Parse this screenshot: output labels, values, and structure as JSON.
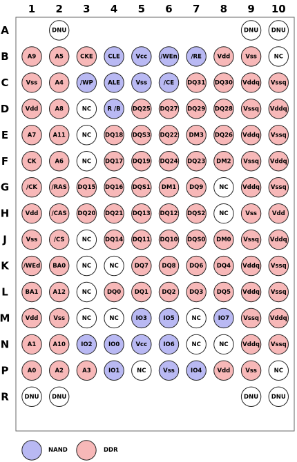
{
  "columns": [
    "1",
    "2",
    "3",
    "4",
    "5",
    "6",
    "7",
    "8",
    "9",
    "10"
  ],
  "rows": [
    "A",
    "B",
    "C",
    "D",
    "E",
    "F",
    "G",
    "H",
    "J",
    "K",
    "L",
    "M",
    "N",
    "P",
    "R"
  ],
  "colors": {
    "nand": "#b9b9f3",
    "ddr": "#f7b8b8",
    "none": "#ffffff"
  },
  "legend": [
    {
      "label": "NAND",
      "type": "nand"
    },
    {
      "label": "DDR",
      "type": "ddr"
    }
  ],
  "grid": [
    [
      null,
      {
        "label": "DNU",
        "type": "none"
      },
      null,
      null,
      null,
      null,
      null,
      null,
      {
        "label": "DNU",
        "type": "none"
      },
      {
        "label": "DNU",
        "type": "none"
      }
    ],
    [
      {
        "label": "A9",
        "type": "ddr"
      },
      {
        "label": "A5",
        "type": "ddr"
      },
      {
        "label": "CKE",
        "type": "ddr"
      },
      {
        "label": "CLE",
        "type": "nand"
      },
      {
        "label": "Vcc",
        "type": "nand"
      },
      {
        "label": "/WEn",
        "type": "nand"
      },
      {
        "label": "/RE",
        "type": "nand"
      },
      {
        "label": "Vdd",
        "type": "ddr"
      },
      {
        "label": "Vss",
        "type": "ddr"
      },
      {
        "label": "NC",
        "type": "none"
      }
    ],
    [
      {
        "label": "Vss",
        "type": "ddr"
      },
      {
        "label": "A4",
        "type": "ddr"
      },
      {
        "label": "/WP",
        "type": "nand"
      },
      {
        "label": "ALE",
        "type": "nand"
      },
      {
        "label": "Vss",
        "type": "nand"
      },
      {
        "label": "/CE",
        "type": "nand"
      },
      {
        "label": "DQ31",
        "type": "ddr"
      },
      {
        "label": "DQ30",
        "type": "ddr"
      },
      {
        "label": "Vddq",
        "type": "ddr"
      },
      {
        "label": "Vssq",
        "type": "ddr"
      }
    ],
    [
      {
        "label": "Vdd",
        "type": "ddr"
      },
      {
        "label": "A8",
        "type": "ddr"
      },
      {
        "label": "NC",
        "type": "none"
      },
      {
        "label": "R /B",
        "type": "nand"
      },
      {
        "label": "DQ25",
        "type": "ddr"
      },
      {
        "label": "DQ27",
        "type": "ddr"
      },
      {
        "label": "DQ29",
        "type": "ddr"
      },
      {
        "label": "DQ28",
        "type": "ddr"
      },
      {
        "label": "Vssq",
        "type": "ddr"
      },
      {
        "label": "Vddq",
        "type": "ddr"
      }
    ],
    [
      {
        "label": "A7",
        "type": "ddr"
      },
      {
        "label": "A11",
        "type": "ddr"
      },
      {
        "label": "NC",
        "type": "none"
      },
      {
        "label": "DQ18",
        "type": "ddr"
      },
      {
        "label": "DQS3",
        "type": "ddr"
      },
      {
        "label": "DQ22",
        "type": "ddr"
      },
      {
        "label": "DM3",
        "type": "ddr"
      },
      {
        "label": "DQ26",
        "type": "ddr"
      },
      {
        "label": "Vddq",
        "type": "ddr"
      },
      {
        "label": "Vssq",
        "type": "ddr"
      }
    ],
    [
      {
        "label": "CK",
        "type": "ddr"
      },
      {
        "label": "A6",
        "type": "ddr"
      },
      {
        "label": "NC",
        "type": "none"
      },
      {
        "label": "DQ17",
        "type": "ddr"
      },
      {
        "label": "DQ19",
        "type": "ddr"
      },
      {
        "label": "DQ24",
        "type": "ddr"
      },
      {
        "label": "DQ23",
        "type": "ddr"
      },
      {
        "label": "DM2",
        "type": "ddr"
      },
      {
        "label": "Vssq",
        "type": "ddr"
      },
      {
        "label": "Vddq",
        "type": "ddr"
      }
    ],
    [
      {
        "label": "/CK",
        "type": "ddr"
      },
      {
        "label": "/RAS",
        "type": "ddr"
      },
      {
        "label": "DQ15",
        "type": "ddr"
      },
      {
        "label": "DQ16",
        "type": "ddr"
      },
      {
        "label": "DQS1",
        "type": "ddr"
      },
      {
        "label": "DM1",
        "type": "ddr"
      },
      {
        "label": "DQ9",
        "type": "ddr"
      },
      {
        "label": "NC",
        "type": "none"
      },
      {
        "label": "Vddq",
        "type": "ddr"
      },
      {
        "label": "Vssq",
        "type": "ddr"
      }
    ],
    [
      {
        "label": "Vdd",
        "type": "ddr"
      },
      {
        "label": "/CAS",
        "type": "ddr"
      },
      {
        "label": "DQ20",
        "type": "ddr"
      },
      {
        "label": "DQ21",
        "type": "ddr"
      },
      {
        "label": "DQ13",
        "type": "ddr"
      },
      {
        "label": "DQ12",
        "type": "ddr"
      },
      {
        "label": "DQS2",
        "type": "ddr"
      },
      {
        "label": "NC",
        "type": "none"
      },
      {
        "label": "Vss",
        "type": "ddr"
      },
      {
        "label": "Vdd",
        "type": "ddr"
      }
    ],
    [
      {
        "label": "Vss",
        "type": "ddr"
      },
      {
        "label": "/CS",
        "type": "ddr"
      },
      {
        "label": "NC",
        "type": "none"
      },
      {
        "label": "DQ14",
        "type": "ddr"
      },
      {
        "label": "DQ11",
        "type": "ddr"
      },
      {
        "label": "DQ10",
        "type": "ddr"
      },
      {
        "label": "DQS0",
        "type": "ddr"
      },
      {
        "label": "DM0",
        "type": "ddr"
      },
      {
        "label": "Vssq",
        "type": "ddr"
      },
      {
        "label": "Vddq",
        "type": "ddr"
      }
    ],
    [
      {
        "label": "/WEd",
        "type": "ddr"
      },
      {
        "label": "BA0",
        "type": "ddr"
      },
      {
        "label": "NC",
        "type": "none"
      },
      {
        "label": "NC",
        "type": "none"
      },
      {
        "label": "DQ7",
        "type": "ddr"
      },
      {
        "label": "DQ8",
        "type": "ddr"
      },
      {
        "label": "DQ6",
        "type": "ddr"
      },
      {
        "label": "DQ4",
        "type": "ddr"
      },
      {
        "label": "Vddq",
        "type": "ddr"
      },
      {
        "label": "Vssq",
        "type": "ddr"
      }
    ],
    [
      {
        "label": "BA1",
        "type": "ddr"
      },
      {
        "label": "A12",
        "type": "ddr"
      },
      {
        "label": "NC",
        "type": "none"
      },
      {
        "label": "DQ0",
        "type": "ddr"
      },
      {
        "label": "DQ1",
        "type": "ddr"
      },
      {
        "label": "DQ2",
        "type": "ddr"
      },
      {
        "label": "DQ3",
        "type": "ddr"
      },
      {
        "label": "DQ5",
        "type": "ddr"
      },
      {
        "label": "Vddq",
        "type": "ddr"
      },
      {
        "label": "Vssq",
        "type": "ddr"
      }
    ],
    [
      {
        "label": "Vdd",
        "type": "ddr"
      },
      {
        "label": "Vss",
        "type": "ddr"
      },
      {
        "label": "NC",
        "type": "none"
      },
      {
        "label": "NC",
        "type": "none"
      },
      {
        "label": "IO3",
        "type": "nand"
      },
      {
        "label": "IO5",
        "type": "nand"
      },
      {
        "label": "NC",
        "type": "none"
      },
      {
        "label": "IO7",
        "type": "nand"
      },
      {
        "label": "Vssq",
        "type": "ddr"
      },
      {
        "label": "Vddq",
        "type": "ddr"
      }
    ],
    [
      {
        "label": "A1",
        "type": "ddr"
      },
      {
        "label": "A10",
        "type": "ddr"
      },
      {
        "label": "IO2",
        "type": "nand"
      },
      {
        "label": "IO0",
        "type": "nand"
      },
      {
        "label": "Vcc",
        "type": "nand"
      },
      {
        "label": "IO6",
        "type": "nand"
      },
      {
        "label": "NC",
        "type": "none"
      },
      {
        "label": "NC",
        "type": "none"
      },
      {
        "label": "Vddq",
        "type": "ddr"
      },
      {
        "label": "Vssq",
        "type": "ddr"
      }
    ],
    [
      {
        "label": "A0",
        "type": "ddr"
      },
      {
        "label": "A2",
        "type": "ddr"
      },
      {
        "label": "A3",
        "type": "ddr"
      },
      {
        "label": "IO1",
        "type": "nand"
      },
      {
        "label": "NC",
        "type": "none"
      },
      {
        "label": "Vss",
        "type": "nand"
      },
      {
        "label": "IO4",
        "type": "nand"
      },
      {
        "label": "Vdd",
        "type": "ddr"
      },
      {
        "label": "Vss",
        "type": "ddr"
      },
      {
        "label": "NC",
        "type": "none"
      }
    ],
    [
      {
        "label": "DNU",
        "type": "none"
      },
      {
        "label": "DNU",
        "type": "none"
      },
      null,
      null,
      null,
      null,
      null,
      null,
      {
        "label": "DNU",
        "type": "none"
      },
      {
        "label": "DNU",
        "type": "none"
      }
    ]
  ]
}
